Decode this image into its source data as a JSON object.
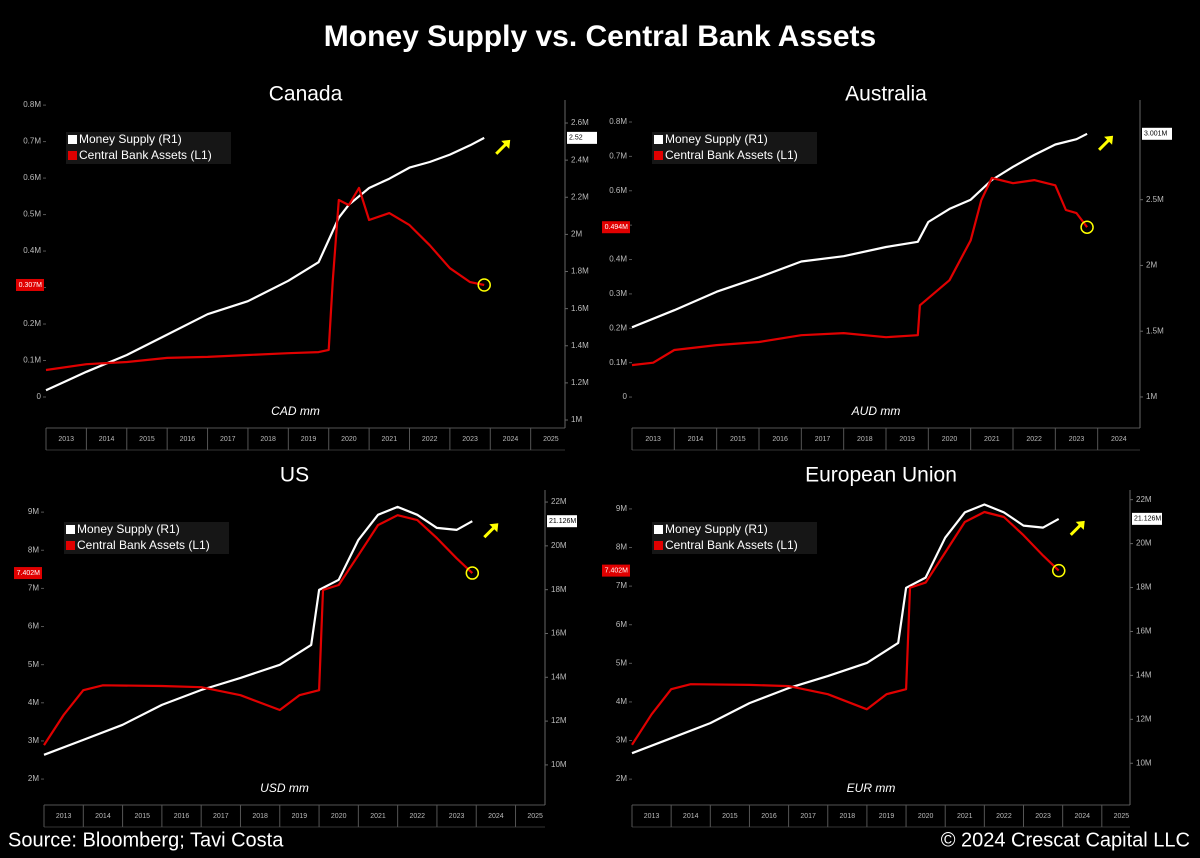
{
  "title": "Money Supply vs. Central Bank Assets",
  "source": "Source: Bloomberg; Tavi Costa",
  "copyright": "© 2024 Crescat Capital LLC",
  "chart_data": [
    {
      "type": "line",
      "title": "Canada",
      "annotation": "CAD mm",
      "legend": "upper left",
      "xlim": [
        2013,
        2025.85
      ],
      "xticks": [
        2013,
        2014,
        2015,
        2016,
        2017,
        2018,
        2019,
        2020,
        2021,
        2022,
        2023,
        2024,
        2025
      ],
      "ylim": [
        -0.085,
        0.814
      ],
      "yticks": [
        0,
        {
          "value": 0.1,
          "label": "0.1M"
        },
        {
          "value": 0.2,
          "label": "0.2M"
        },
        {
          "value": 0.3,
          "label": "0.3M"
        },
        {
          "value": 0.4,
          "label": "0.4M"
        },
        {
          "value": 0.5,
          "label": "0.5M"
        },
        {
          "value": 0.6,
          "label": "0.6M"
        },
        {
          "value": 0.7,
          "label": "0.7M"
        },
        {
          "value": 0.8,
          "label": "0.8M"
        }
      ],
      "y2lim": [
        0.957,
        2.724
      ],
      "y2ticks": [
        {
          "value": 1,
          "label": "1M"
        },
        {
          "value": 1.2,
          "label": "1.2M"
        },
        {
          "value": 1.4,
          "label": "1.4M"
        },
        {
          "value": 1.6,
          "label": "1.6M"
        },
        {
          "value": 1.8,
          "label": "1.8M"
        },
        {
          "value": 2,
          "label": "2M"
        },
        {
          "value": 2.2,
          "label": "2.2M"
        },
        {
          "value": 2.4,
          "label": "2.4M"
        },
        {
          "value": 2.6,
          "label": "2.6M"
        }
      ],
      "series": [
        {
          "name": "Money Supply (R1)",
          "color": "#ffffff",
          "axis": "y2",
          "x": [
            2013,
            2014,
            2015,
            2016,
            2017,
            2018,
            2019,
            2019.75,
            2020,
            2020.25,
            2020.5,
            2021,
            2021.5,
            2022,
            2022.5,
            2023,
            2023.5,
            2023.85
          ],
          "values": [
            1.16,
            1.26,
            1.35,
            1.46,
            1.57,
            1.64,
            1.75,
            1.85,
            1.97,
            2.09,
            2.16,
            2.25,
            2.3,
            2.36,
            2.39,
            2.43,
            2.48,
            2.52
          ],
          "value_labels": [
            null,
            null,
            null,
            null,
            null,
            null,
            null,
            null,
            null,
            null,
            null,
            null,
            null,
            null,
            null,
            null,
            null,
            "2.52"
          ]
        },
        {
          "name": "Central Bank Assets (L1)",
          "color": "#e00000",
          "axis": "y",
          "x": [
            2013,
            2014,
            2015,
            2016,
            2017,
            2018,
            2019,
            2019.75,
            2020,
            2020.1,
            2020.25,
            2020.5,
            2020.75,
            2021,
            2021.5,
            2022,
            2022.5,
            2023,
            2023.5,
            2023.85
          ],
          "values": [
            0.074,
            0.09,
            0.096,
            0.107,
            0.11,
            0.115,
            0.12,
            0.123,
            0.129,
            0.32,
            0.54,
            0.526,
            0.573,
            0.485,
            0.504,
            0.471,
            0.416,
            0.353,
            0.315,
            0.307
          ],
          "value_labels": [
            null,
            null,
            null,
            null,
            null,
            null,
            null,
            null,
            null,
            null,
            null,
            null,
            null,
            null,
            null,
            null,
            null,
            null,
            null,
            "0.307M"
          ]
        }
      ]
    },
    {
      "type": "line",
      "title": "Australia",
      "annotation": "AUD mm",
      "legend": "upper left",
      "xlim": [
        2013,
        2025.0
      ],
      "xticks": [
        2013,
        2014,
        2015,
        2016,
        2017,
        2018,
        2019,
        2020,
        2021,
        2022,
        2023,
        2024
      ],
      "ylim": [
        -0.09,
        0.864
      ],
      "yticks": [
        0,
        {
          "value": 0.1,
          "label": "0.1M"
        },
        {
          "value": 0.2,
          "label": "0.2M"
        },
        {
          "value": 0.3,
          "label": "0.3M"
        },
        {
          "value": 0.4,
          "label": "0.4M"
        },
        {
          "value": 0.5,
          "label": "0.5M"
        },
        {
          "value": 0.6,
          "label": "0.6M"
        },
        {
          "value": 0.7,
          "label": "0.7M"
        },
        {
          "value": 0.8,
          "label": "0.8M"
        }
      ],
      "y2lim": [
        0.764,
        3.258
      ],
      "y2ticks": [
        {
          "value": 1,
          "label": "1M"
        },
        {
          "value": 1.5,
          "label": "1.5M"
        },
        {
          "value": 2,
          "label": "2M"
        },
        {
          "value": 2.5,
          "label": "2.5M"
        }
      ],
      "series": [
        {
          "name": "Money Supply (R1)",
          "color": "#ffffff",
          "axis": "y2",
          "x": [
            2013,
            2014,
            2015,
            2016,
            2017,
            2018,
            2019,
            2019.75,
            2020,
            2020.5,
            2021,
            2021.5,
            2022,
            2022.5,
            2023,
            2023.5,
            2023.75
          ],
          "values": [
            1.53,
            1.66,
            1.8,
            1.91,
            2.03,
            2.07,
            2.14,
            2.18,
            2.33,
            2.43,
            2.5,
            2.65,
            2.75,
            2.84,
            2.92,
            2.96,
            3.001
          ],
          "value_labels": [
            null,
            null,
            null,
            null,
            null,
            null,
            null,
            null,
            null,
            null,
            null,
            null,
            null,
            null,
            null,
            null,
            "3.001M"
          ]
        },
        {
          "name": "Central Bank Assets (L1)",
          "color": "#e00000",
          "axis": "y",
          "x": [
            2013,
            2013.5,
            2014,
            2015,
            2016,
            2017,
            2018,
            2019,
            2019.75,
            2019.8,
            2020.5,
            2021,
            2021.25,
            2021.5,
            2022,
            2022.5,
            2023,
            2023.25,
            2023.5,
            2023.75
          ],
          "values": [
            0.093,
            0.1,
            0.137,
            0.151,
            0.16,
            0.18,
            0.186,
            0.174,
            0.18,
            0.267,
            0.34,
            0.456,
            0.573,
            0.637,
            0.622,
            0.631,
            0.616,
            0.544,
            0.535,
            0.494
          ],
          "value_labels": [
            null,
            null,
            null,
            null,
            null,
            null,
            null,
            null,
            null,
            null,
            null,
            null,
            null,
            null,
            null,
            null,
            null,
            null,
            null,
            "0.494M"
          ]
        }
      ]
    },
    {
      "type": "line",
      "title": "US",
      "annotation": "USD mm",
      "legend": "upper left",
      "xlim": [
        2013,
        2025.75
      ],
      "xticks": [
        2013,
        2014,
        2015,
        2016,
        2017,
        2018,
        2019,
        2020,
        2021,
        2022,
        2023,
        2024,
        2025
      ],
      "ylim": [
        1.32,
        9.58
      ],
      "yticks": [
        {
          "value": 2,
          "label": "2M"
        },
        {
          "value": 3,
          "label": "3M"
        },
        {
          "value": 4,
          "label": "4M"
        },
        {
          "value": 5,
          "label": "5M"
        },
        {
          "value": 6,
          "label": "6M"
        },
        {
          "value": 7,
          "label": "7M"
        },
        {
          "value": 8,
          "label": "8M"
        },
        {
          "value": 9,
          "label": "9M"
        }
      ],
      "y2lim": [
        8.17,
        22.55
      ],
      "y2ticks": [
        {
          "value": 10,
          "label": "10M"
        },
        {
          "value": 12,
          "label": "12M"
        },
        {
          "value": 14,
          "label": "14M"
        },
        {
          "value": 16,
          "label": "16M"
        },
        {
          "value": 18,
          "label": "18M"
        },
        {
          "value": 20,
          "label": "20M"
        },
        {
          "value": 22,
          "label": "22M"
        }
      ],
      "series": [
        {
          "name": "Money Supply (R1)",
          "color": "#ffffff",
          "axis": "y2",
          "x": [
            2013,
            2014,
            2015,
            2016,
            2017,
            2018,
            2019,
            2019.8,
            2020,
            2020.5,
            2021,
            2021.5,
            2022,
            2022.5,
            2023,
            2023.5,
            2023.9
          ],
          "values": [
            10.46,
            11.14,
            11.83,
            12.74,
            13.42,
            13.97,
            14.57,
            15.48,
            17.99,
            18.45,
            20.27,
            21.42,
            21.78,
            21.42,
            20.82,
            20.73,
            21.126
          ],
          "value_labels": [
            null,
            null,
            null,
            null,
            null,
            null,
            null,
            null,
            null,
            null,
            null,
            null,
            null,
            null,
            null,
            null,
            "21.126M"
          ]
        },
        {
          "name": "Central Bank Assets (L1)",
          "color": "#e00000",
          "axis": "y",
          "x": [
            2013,
            2013.5,
            2014,
            2014.5,
            2016,
            2017,
            2018,
            2019,
            2019.5,
            2020,
            2020.1,
            2020.5,
            2021,
            2021.5,
            2022,
            2022.5,
            2023,
            2023.5,
            2023.9
          ],
          "values": [
            2.89,
            3.68,
            4.33,
            4.46,
            4.44,
            4.41,
            4.2,
            3.81,
            4.2,
            4.33,
            6.96,
            7.09,
            7.87,
            8.66,
            8.92,
            8.79,
            8.32,
            7.79,
            7.402
          ],
          "value_labels": [
            null,
            null,
            null,
            null,
            null,
            null,
            null,
            null,
            null,
            null,
            null,
            null,
            null,
            null,
            null,
            null,
            null,
            null,
            "7.402M"
          ]
        }
      ]
    },
    {
      "type": "line",
      "title": "European Union",
      "annotation": "EUR mm",
      "legend": "upper left",
      "xlim": [
        2013,
        2025.72
      ],
      "xticks": [
        2013,
        2014,
        2015,
        2016,
        2017,
        2018,
        2019,
        2020,
        2021,
        2022,
        2023,
        2024,
        2025
      ],
      "ylim": [
        1.33,
        9.49
      ],
      "yticks": [
        {
          "value": 2,
          "label": "2M"
        },
        {
          "value": 3,
          "label": "3M"
        },
        {
          "value": 4,
          "label": "4M"
        },
        {
          "value": 5,
          "label": "5M"
        },
        {
          "value": 6,
          "label": "6M"
        },
        {
          "value": 7,
          "label": "7M"
        },
        {
          "value": 8,
          "label": "8M"
        },
        {
          "value": 9,
          "label": "9M"
        }
      ],
      "y2lim": [
        8.1,
        22.44
      ],
      "y2ticks": [
        {
          "value": 10,
          "label": "10M"
        },
        {
          "value": 12,
          "label": "12M"
        },
        {
          "value": 14,
          "label": "14M"
        },
        {
          "value": 16,
          "label": "16M"
        },
        {
          "value": 18,
          "label": "18M"
        },
        {
          "value": 20,
          "label": "20M"
        },
        {
          "value": 22,
          "label": "22M"
        }
      ],
      "series": [
        {
          "name": "Money Supply (R1)",
          "color": "#ffffff",
          "axis": "y2",
          "x": [
            2013,
            2014,
            2015,
            2016,
            2017,
            2018,
            2019,
            2019.8,
            2020,
            2020.5,
            2021,
            2021.5,
            2022,
            2022.5,
            2023,
            2023.5,
            2023.9
          ],
          "values": [
            10.46,
            11.14,
            11.83,
            12.74,
            13.42,
            13.97,
            14.57,
            15.48,
            17.99,
            18.45,
            20.27,
            21.42,
            21.78,
            21.42,
            20.82,
            20.73,
            21.126
          ],
          "value_labels": [
            null,
            null,
            null,
            null,
            null,
            null,
            null,
            null,
            null,
            null,
            null,
            null,
            null,
            null,
            null,
            null,
            "21.126M"
          ]
        },
        {
          "name": "Central Bank Assets (L1)",
          "color": "#e00000",
          "axis": "y",
          "x": [
            2013,
            2013.5,
            2014,
            2014.5,
            2016,
            2017,
            2018,
            2019,
            2019.5,
            2020,
            2020.1,
            2020.5,
            2021,
            2021.5,
            2022,
            2022.5,
            2023,
            2023.5,
            2023.9
          ],
          "values": [
            2.89,
            3.68,
            4.33,
            4.46,
            4.44,
            4.41,
            4.2,
            3.81,
            4.2,
            4.33,
            6.96,
            7.09,
            7.87,
            8.66,
            8.92,
            8.79,
            8.32,
            7.79,
            7.402
          ],
          "value_labels": [
            null,
            null,
            null,
            null,
            null,
            null,
            null,
            null,
            null,
            null,
            null,
            null,
            null,
            null,
            null,
            null,
            null,
            null,
            "7.402M"
          ]
        }
      ]
    }
  ]
}
